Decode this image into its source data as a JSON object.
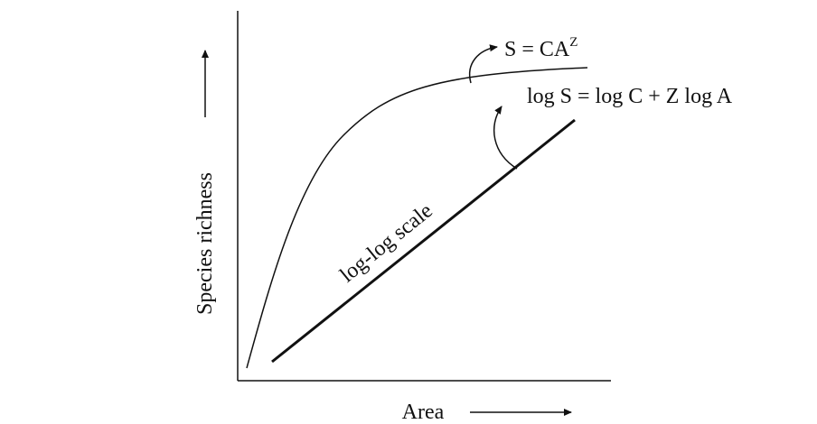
{
  "curve_label": {
    "base": "S = CA",
    "exponent": "Z"
  },
  "line_label": "log S = log C + Z log A",
  "scale_label": "log-log scale",
  "y_axis_label": "Species richness",
  "x_axis_label": "Area"
}
